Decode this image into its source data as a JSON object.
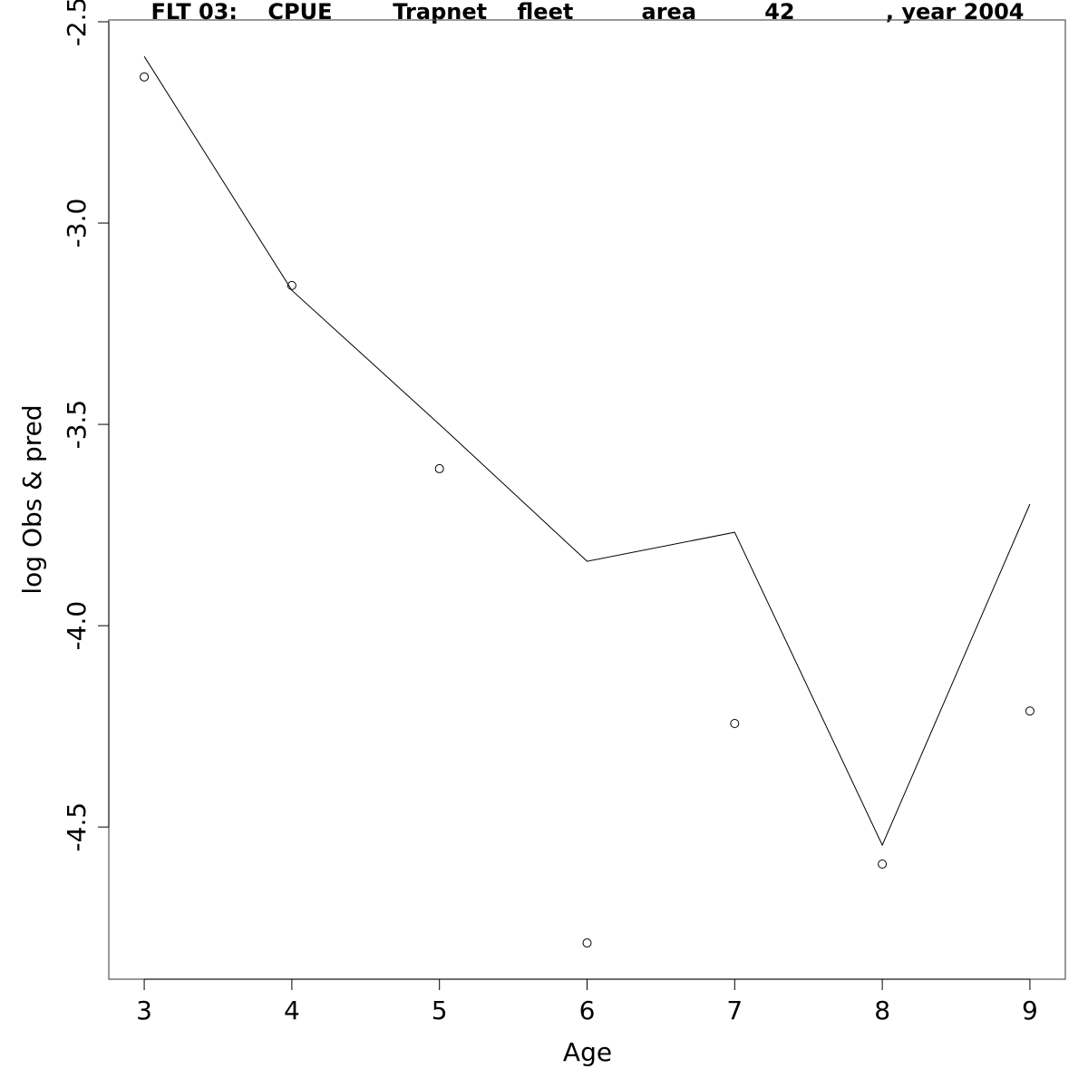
{
  "chart_data": {
    "type": "line",
    "title": "FLT 03:    CPUE        Trapnet    fleet         area         42            , year 2004",
    "x_label": "Age",
    "y_label": "log Obs & pred",
    "x": [
      3,
      4,
      5,
      6,
      7,
      8,
      9
    ],
    "series": [
      {
        "mode": "points",
        "color": "#000000",
        "values": [
          -2.637,
          -3.155,
          -3.61,
          -4.788,
          -4.243,
          -4.592,
          -4.212
        ]
      },
      {
        "mode": "line",
        "color": "#000000",
        "values": [
          -2.586,
          -3.167,
          -3.5,
          -3.84,
          -3.768,
          -4.545,
          -3.698
        ]
      }
    ],
    "xlim": [
      2.76,
      9.24
    ],
    "xticks": [
      3,
      4,
      5,
      6,
      7,
      8,
      9
    ],
    "ylim": [
      -4.878,
      -2.4955
    ],
    "yticks": [
      -2.5,
      {
        "value": -3,
        "label": "-3.0"
      },
      -3.5,
      {
        "value": -4,
        "label": "-4.0"
      },
      -4.5
    ]
  }
}
